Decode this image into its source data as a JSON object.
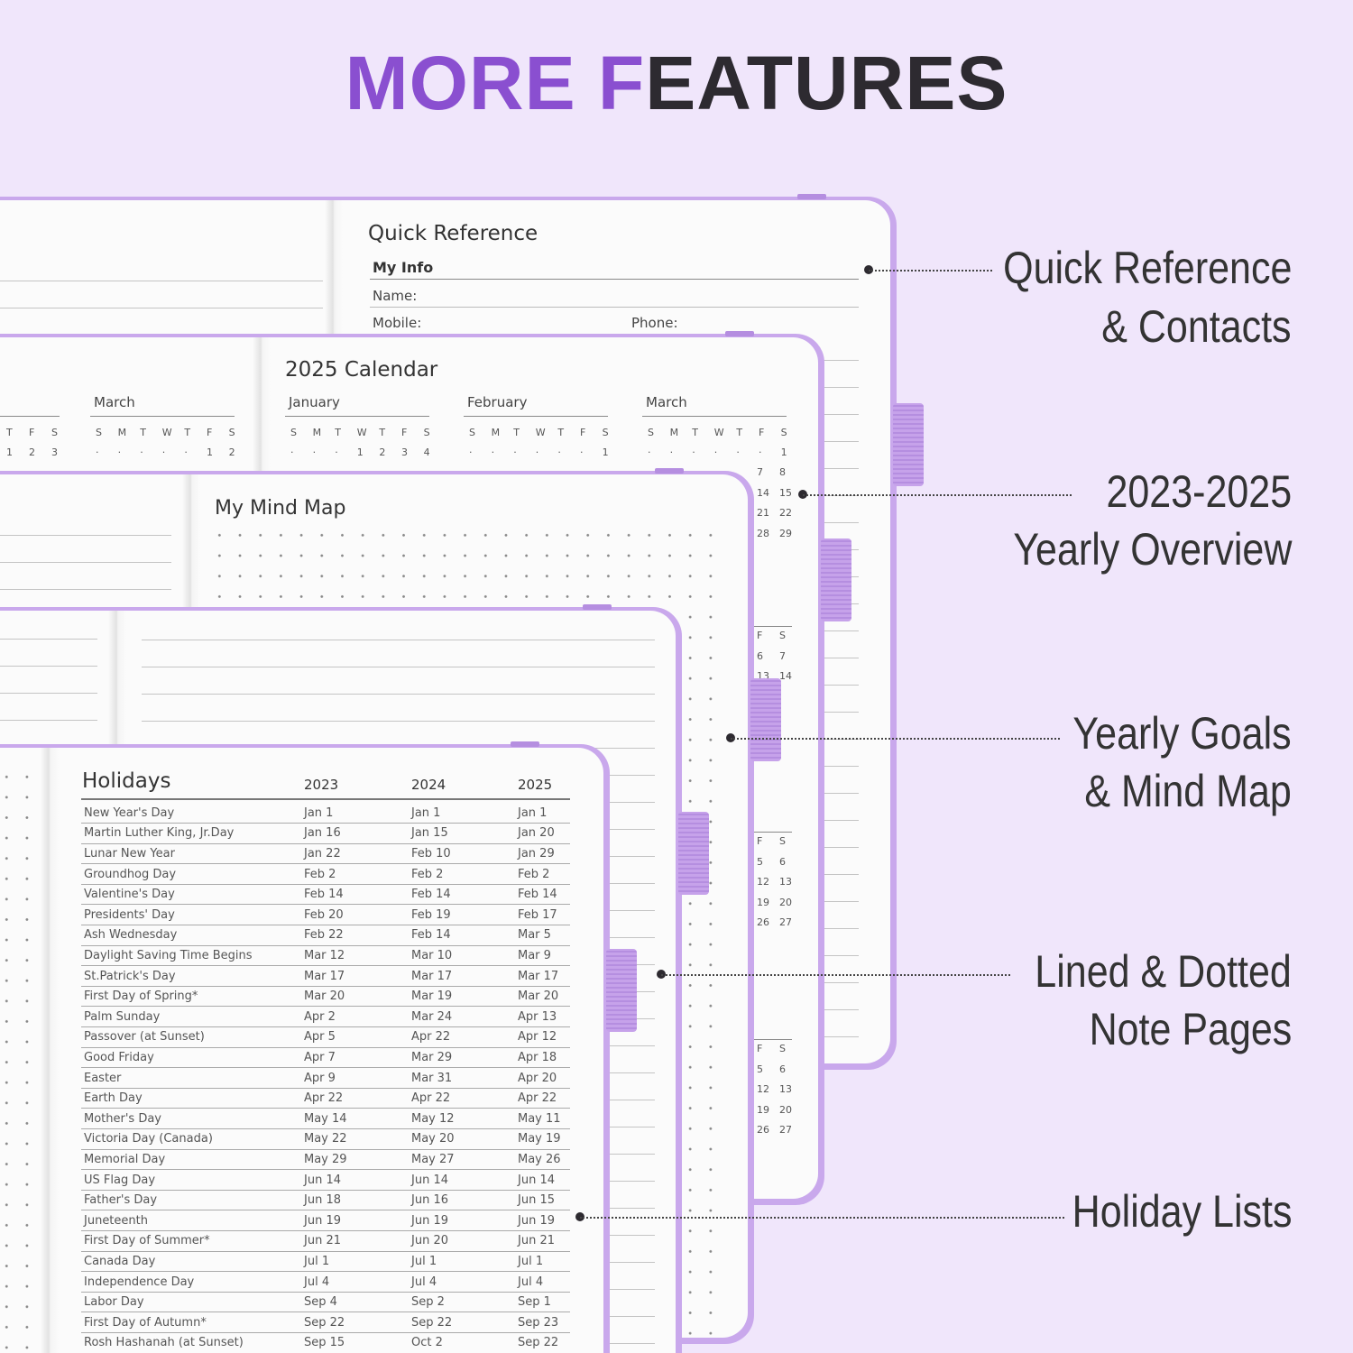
{
  "header": {
    "title_accent": "MORE F",
    "title_rest": "EATURES"
  },
  "callouts": [
    {
      "lines": [
        "Quick Reference",
        "& Contacts"
      ]
    },
    {
      "lines": [
        "2023-2025",
        "Yearly Overview"
      ]
    },
    {
      "lines": [
        "Yearly Goals",
        "& Mind Map"
      ]
    },
    {
      "lines": [
        "Lined & Dotted",
        "Note Pages"
      ]
    },
    {
      "lines": [
        "Holiday Lists"
      ]
    }
  ],
  "quick_reference": {
    "title": "Quick Reference",
    "section": "My Info",
    "fields": [
      "Name:",
      "Mobile:",
      "Phone:"
    ]
  },
  "calendar": {
    "title": "2025 Calendar",
    "weekdays": [
      "S",
      "M",
      "T",
      "W",
      "T",
      "F",
      "S"
    ],
    "months": [
      {
        "name": "January",
        "first_week": [
          "·",
          "·",
          "·",
          "1",
          "2",
          "3",
          "4"
        ]
      },
      {
        "name": "February",
        "first_week": [
          "·",
          "·",
          "·",
          "·",
          "·",
          "·",
          "1"
        ]
      },
      {
        "name": "March",
        "first_week": [
          "·",
          "·",
          "·",
          "·",
          "·",
          "·",
          "1"
        ]
      }
    ],
    "prev_page": {
      "month": "March",
      "weekday_tail": [
        "T",
        "F",
        "S"
      ],
      "row_tail": [
        "1",
        "2",
        "3"
      ],
      "first_week": [
        "·",
        "·",
        "·",
        "·",
        "·",
        "1",
        "2"
      ]
    },
    "side_columns": [
      [
        [
          "7",
          "8"
        ],
        [
          "14",
          "15"
        ],
        [
          "21",
          "22"
        ],
        [
          "28",
          "29"
        ]
      ],
      [
        [
          "F",
          "S"
        ],
        [
          "6",
          "7"
        ],
        [
          "13",
          "14"
        ]
      ],
      [
        [
          "F",
          "S"
        ],
        [
          "5",
          "6"
        ],
        [
          "12",
          "13"
        ],
        [
          "19",
          "20"
        ],
        [
          "26",
          "27"
        ]
      ],
      [
        [
          "F",
          "S"
        ],
        [
          "5",
          "6"
        ],
        [
          "12",
          "13"
        ],
        [
          "19",
          "20"
        ],
        [
          "26",
          "27"
        ]
      ]
    ]
  },
  "mind_map": {
    "title": "My Mind Map"
  },
  "holidays": {
    "title": "Holidays",
    "years": [
      "2023",
      "2024",
      "2025"
    ],
    "rows": [
      [
        "New Year's Day",
        "Jan 1",
        "Jan 1",
        "Jan 1"
      ],
      [
        "Martin Luther King, Jr.Day",
        "Jan 16",
        "Jan 15",
        "Jan 20"
      ],
      [
        "Lunar New Year",
        "Jan 22",
        "Feb 10",
        "Jan 29"
      ],
      [
        "Groundhog Day",
        "Feb 2",
        "Feb 2",
        "Feb 2"
      ],
      [
        "Valentine's Day",
        "Feb 14",
        "Feb 14",
        "Feb 14"
      ],
      [
        "Presidents' Day",
        "Feb 20",
        "Feb 19",
        "Feb 17"
      ],
      [
        "Ash Wednesday",
        "Feb 22",
        "Feb 14",
        "Mar 5"
      ],
      [
        "Daylight Saving Time Begins",
        "Mar 12",
        "Mar 10",
        "Mar 9"
      ],
      [
        "St.Patrick's Day",
        "Mar 17",
        "Mar 17",
        "Mar 17"
      ],
      [
        "First Day of Spring*",
        "Mar 20",
        "Mar 19",
        "Mar 20"
      ],
      [
        "Palm Sunday",
        "Apr 2",
        "Mar 24",
        "Apr 13"
      ],
      [
        "Passover (at Sunset)",
        "Apr 5",
        "Apr 22",
        "Apr 12"
      ],
      [
        "Good Friday",
        "Apr 7",
        "Mar 29",
        "Apr 18"
      ],
      [
        "Easter",
        "Apr 9",
        "Mar 31",
        "Apr 20"
      ],
      [
        "Earth Day",
        "Apr 22",
        "Apr 22",
        "Apr 22"
      ],
      [
        "Mother's Day",
        "May 14",
        "May 12",
        "May 11"
      ],
      [
        "Victoria Day (Canada)",
        "May 22",
        "May 20",
        "May 19"
      ],
      [
        "Memorial Day",
        "May 29",
        "May 27",
        "May 26"
      ],
      [
        "US Flag Day",
        "Jun 14",
        "Jun 14",
        "Jun 14"
      ],
      [
        "Father's Day",
        "Jun 18",
        "Jun 16",
        "Jun 15"
      ],
      [
        "Juneteenth",
        "Jun 19",
        "Jun 19",
        "Jun 19"
      ],
      [
        "First Day of Summer*",
        "Jun 21",
        "Jun 20",
        "Jun 21"
      ],
      [
        "Canada Day",
        "Jul 1",
        "Jul 1",
        "Jul 1"
      ],
      [
        "Independence Day",
        "Jul 4",
        "Jul 4",
        "Jul 4"
      ],
      [
        "Labor Day",
        "Sep 4",
        "Sep 2",
        "Sep 1"
      ],
      [
        "First Day of Autumn*",
        "Sep 22",
        "Sep 22",
        "Sep 23"
      ],
      [
        "Rosh Hashanah (at Sunset)",
        "Sep 15",
        "Oct 2",
        "Sep 22"
      ]
    ]
  }
}
